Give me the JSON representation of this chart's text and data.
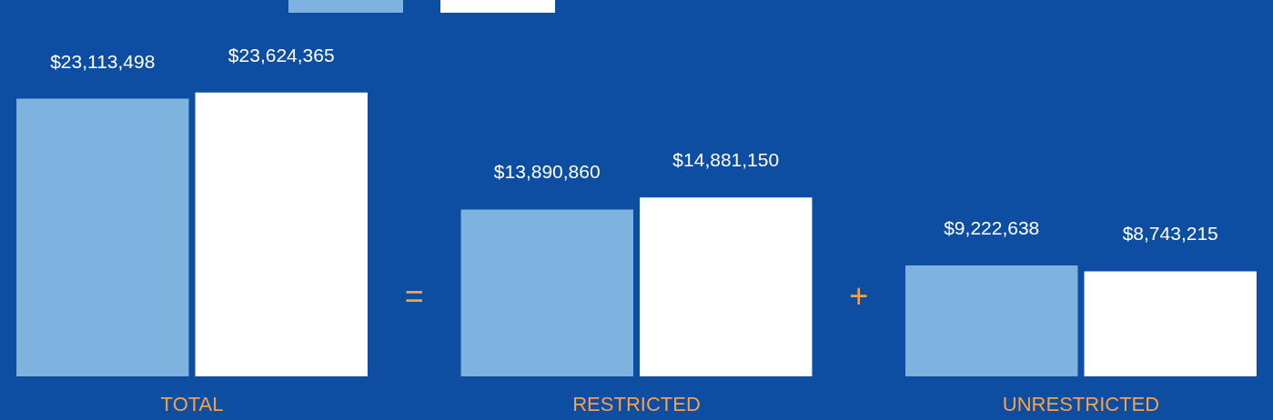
{
  "chart_data": {
    "type": "bar",
    "categories": [
      "TOTAL",
      "RESTRICTED",
      "UNRESTRICTED"
    ],
    "series": [
      {
        "color": "#7eb3e0",
        "values": [
          23113498,
          13890860,
          9222638
        ],
        "value_labels": [
          "$23,113,498",
          "$13,890,860",
          "$9,222,638"
        ]
      },
      {
        "color": "#ffffff",
        "values": [
          23624365,
          14881150,
          8743215
        ],
        "value_labels": [
          "$23,624,365",
          "$14,881,150",
          "$8,743,215"
        ]
      }
    ],
    "annotations": [
      "=",
      "+"
    ]
  }
}
